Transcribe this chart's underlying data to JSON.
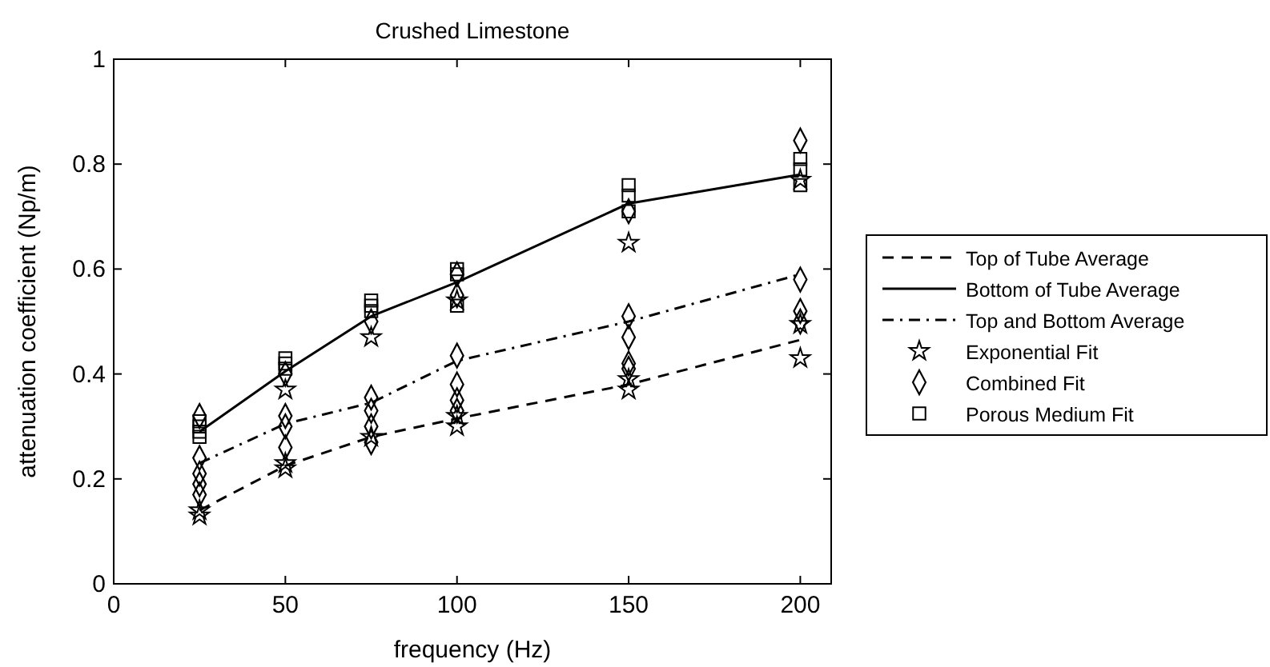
{
  "chart_data": {
    "type": "line",
    "title": "Crushed Limestone",
    "xlabel": "frequency (Hz)",
    "ylabel": "attenuation coefficient (Np/m)",
    "xlim": [
      0,
      209
    ],
    "xticks": [
      0,
      50,
      100,
      150,
      200
    ],
    "ylim": [
      0,
      1
    ],
    "yticks": [
      0,
      0.2,
      0.4,
      0.6,
      0.8,
      1
    ],
    "grid": false,
    "legend": "right",
    "series": [
      {
        "name": "Top of Tube Average",
        "color": "#000000",
        "line_style": "dashed",
        "marker": "none",
        "x": [
          25,
          50,
          75,
          100,
          150,
          200
        ],
        "values": [
          0.14,
          0.225,
          0.28,
          0.315,
          0.38,
          0.465
        ]
      },
      {
        "name": "Bottom of Tube Average",
        "color": "#000000",
        "line_style": "solid",
        "marker": "none",
        "x": [
          25,
          50,
          75,
          100,
          150,
          200
        ],
        "values": [
          0.29,
          0.405,
          0.51,
          0.575,
          0.725,
          0.78
        ]
      },
      {
        "name": "Top and Bottom Average",
        "color": "#000000",
        "line_style": "dashdot",
        "marker": "none",
        "x": [
          25,
          50,
          75,
          100,
          150,
          200
        ],
        "values": [
          0.23,
          0.305,
          0.345,
          0.425,
          0.5,
          0.59
        ]
      },
      {
        "name": "Exponential Fit",
        "type": "scatter",
        "color": "#000000",
        "marker": "star",
        "x": [
          25,
          25,
          50,
          50,
          50,
          75,
          75,
          100,
          100,
          100,
          150,
          150,
          150,
          200,
          200,
          200
        ],
        "values": [
          0.14,
          0.13,
          0.37,
          0.23,
          0.22,
          0.47,
          0.28,
          0.54,
          0.32,
          0.3,
          0.65,
          0.39,
          0.37,
          0.495,
          0.43,
          0.77
        ]
      },
      {
        "name": "Combined Fit",
        "type": "scatter",
        "color": "#000000",
        "marker": "diamond",
        "x": [
          25,
          25,
          25,
          25,
          25,
          50,
          50,
          50,
          50,
          75,
          75,
          75,
          75,
          75,
          100,
          100,
          100,
          100,
          100,
          100,
          150,
          150,
          150,
          150,
          150,
          200,
          200,
          200,
          200
        ],
        "values": [
          0.32,
          0.24,
          0.21,
          0.19,
          0.17,
          0.32,
          0.3,
          0.26,
          0.4,
          0.355,
          0.33,
          0.3,
          0.27,
          0.5,
          0.435,
          0.38,
          0.35,
          0.33,
          0.55,
          0.59,
          0.51,
          0.47,
          0.42,
          0.41,
          0.71,
          0.845,
          0.58,
          0.52,
          0.5
        ]
      },
      {
        "name": "Porous Medium Fit",
        "type": "scatter",
        "color": "#000000",
        "marker": "square",
        "x": [
          25,
          25,
          25,
          25,
          50,
          50,
          50,
          75,
          75,
          75,
          100,
          100,
          100,
          150,
          150,
          150,
          200,
          200,
          200
        ],
        "values": [
          0.31,
          0.3,
          0.29,
          0.28,
          0.43,
          0.42,
          0.41,
          0.54,
          0.53,
          0.52,
          0.6,
          0.59,
          0.53,
          0.76,
          0.74,
          0.71,
          0.81,
          0.79,
          0.76
        ]
      }
    ]
  }
}
